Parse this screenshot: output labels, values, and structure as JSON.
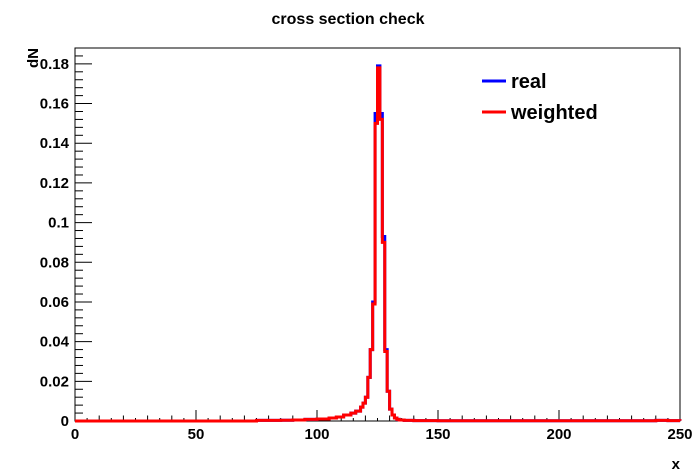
{
  "chart_data": {
    "type": "line",
    "title": "cross section check",
    "xlabel": "x",
    "ylabel": "dN",
    "xlim": [
      0,
      250
    ],
    "ylim": [
      0,
      0.188
    ],
    "x_ticks": [
      0,
      50,
      100,
      150,
      200,
      250
    ],
    "x_tick_labels": [
      "0",
      "50",
      "100",
      "150",
      "200",
      "250"
    ],
    "y_ticks": [
      0,
      0.02,
      0.04,
      0.06,
      0.08,
      0.1,
      0.12,
      0.14,
      0.16,
      0.18
    ],
    "y_tick_labels": [
      "0",
      "0.02",
      "0.04",
      "0.06",
      "0.08",
      "0.1",
      "0.12",
      "0.14",
      "0.16",
      "0.18"
    ],
    "grid": false,
    "legend_position": "top-right",
    "series": [
      {
        "name": "real",
        "color": "#0000ff",
        "x": [
          75,
          80,
          85,
          90,
          95,
          100,
          105,
          108,
          111,
          114,
          116,
          118,
          119,
          120,
          121,
          122,
          123,
          124,
          125,
          126,
          127,
          128,
          129,
          130,
          131,
          132,
          133,
          134,
          136,
          140,
          150,
          200,
          240,
          245,
          250
        ],
        "y": [
          0.0003,
          0.0003,
          0.0004,
          0.0005,
          0.0008,
          0.001,
          0.0015,
          0.002,
          0.003,
          0.004,
          0.005,
          0.007,
          0.009,
          0.012,
          0.022,
          0.036,
          0.06,
          0.155,
          0.179,
          0.155,
          0.093,
          0.036,
          0.015,
          0.006,
          0.003,
          0.0015,
          0.0008,
          0.0005,
          0.0003,
          0.0002,
          0.0001,
          0.0001,
          0.0003,
          0.0002,
          0.0001
        ]
      },
      {
        "name": "weighted",
        "color": "#ff0000",
        "x": [
          75,
          80,
          85,
          90,
          95,
          100,
          105,
          108,
          111,
          114,
          116,
          118,
          119,
          120,
          121,
          122,
          123,
          124,
          125,
          126,
          127,
          128,
          129,
          130,
          131,
          132,
          133,
          134,
          136,
          140,
          150,
          200,
          240,
          245,
          250
        ],
        "y": [
          0.0003,
          0.0003,
          0.0004,
          0.0005,
          0.0008,
          0.001,
          0.0015,
          0.002,
          0.003,
          0.004,
          0.005,
          0.007,
          0.009,
          0.012,
          0.022,
          0.036,
          0.059,
          0.15,
          0.178,
          0.152,
          0.09,
          0.035,
          0.015,
          0.006,
          0.003,
          0.0015,
          0.0008,
          0.0005,
          0.0003,
          0.0002,
          0.0001,
          0.0001,
          0.0003,
          0.0002,
          0.0001
        ]
      }
    ]
  }
}
